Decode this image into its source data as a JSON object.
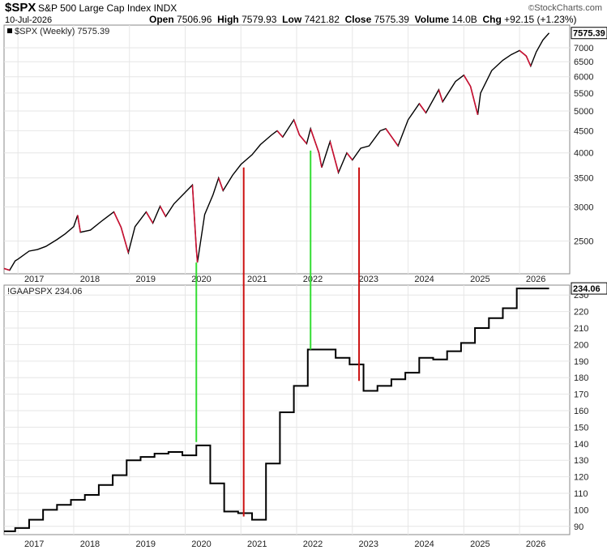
{
  "header": {
    "symbol": "$SPX",
    "name": "S&P 500 Large Cap Index",
    "exchange": "INDX",
    "date": "10-Jul-2026",
    "open_label": "Open",
    "open": "7506.96",
    "high_label": "High",
    "high": "7579.93",
    "low_label": "Low",
    "low": "7421.82",
    "close_label": "Close",
    "close": "7575.39",
    "volume_label": "Volume",
    "volume": "14.0B",
    "chg_label": "Chg",
    "chg": "+92.15 (+1.23%)",
    "brand": "StockCharts.com",
    "brand_symbol": "©"
  },
  "colors": {
    "up_bar": "#000000",
    "down_bar": "#cc1133",
    "green_line": "#33dd33",
    "red_line": "#cc1111",
    "grid": "#e6e6e6",
    "step_line": "#000000"
  },
  "chart_data": [
    {
      "type": "line",
      "legend": "$SPX (Weekly) 7575.39",
      "last_value_tag": "7575.39",
      "y_scale": "log",
      "ylim": [
        2100,
        7900
      ],
      "xlim": [
        2016.75,
        2026.9
      ],
      "y_ticks": [
        2500,
        3000,
        3500,
        4000,
        4500,
        5000,
        5500,
        6000,
        6500,
        7000
      ],
      "x_ticks": [
        "2017",
        "2018",
        "2019",
        "2020",
        "2021",
        "2022",
        "2023",
        "2024",
        "2025",
        "2026"
      ],
      "grid": true,
      "points": [
        [
          2016.75,
          2160
        ],
        [
          2016.85,
          2140
        ],
        [
          2016.95,
          2250
        ],
        [
          2017.0,
          2270
        ],
        [
          2017.2,
          2370
        ],
        [
          2017.35,
          2390
        ],
        [
          2017.5,
          2430
        ],
        [
          2017.7,
          2520
        ],
        [
          2017.85,
          2600
        ],
        [
          2018.0,
          2700
        ],
        [
          2018.07,
          2870
        ],
        [
          2018.12,
          2620
        ],
        [
          2018.3,
          2650
        ],
        [
          2018.5,
          2780
        ],
        [
          2018.72,
          2920
        ],
        [
          2018.85,
          2690
        ],
        [
          2018.98,
          2350
        ],
        [
          2019.1,
          2700
        ],
        [
          2019.3,
          2920
        ],
        [
          2019.42,
          2750
        ],
        [
          2019.55,
          3010
        ],
        [
          2019.65,
          2850
        ],
        [
          2019.8,
          3050
        ],
        [
          2020.0,
          3240
        ],
        [
          2020.13,
          3370
        ],
        [
          2020.2,
          2400
        ],
        [
          2020.22,
          2230
        ],
        [
          2020.35,
          2880
        ],
        [
          2020.5,
          3200
        ],
        [
          2020.6,
          3500
        ],
        [
          2020.68,
          3270
        ],
        [
          2020.85,
          3550
        ],
        [
          2021.0,
          3760
        ],
        [
          2021.2,
          3960
        ],
        [
          2021.35,
          4180
        ],
        [
          2021.55,
          4400
        ],
        [
          2021.65,
          4500
        ],
        [
          2021.75,
          4350
        ],
        [
          2021.95,
          4770
        ],
        [
          2022.05,
          4400
        ],
        [
          2022.18,
          4200
        ],
        [
          2022.25,
          4550
        ],
        [
          2022.4,
          4000
        ],
        [
          2022.45,
          3700
        ],
        [
          2022.6,
          4250
        ],
        [
          2022.75,
          3600
        ],
        [
          2022.9,
          4000
        ],
        [
          2023.0,
          3850
        ],
        [
          2023.15,
          4100
        ],
        [
          2023.3,
          4150
        ],
        [
          2023.5,
          4500
        ],
        [
          2023.6,
          4550
        ],
        [
          2023.82,
          4150
        ],
        [
          2024.0,
          4770
        ],
        [
          2024.2,
          5200
        ],
        [
          2024.32,
          4950
        ],
        [
          2024.55,
          5600
        ],
        [
          2024.62,
          5250
        ],
        [
          2024.85,
          5850
        ],
        [
          2025.0,
          6050
        ],
        [
          2025.12,
          5700
        ],
        [
          2025.25,
          4900
        ],
        [
          2025.3,
          5500
        ],
        [
          2025.5,
          6200
        ],
        [
          2025.7,
          6550
        ],
        [
          2025.85,
          6750
        ],
        [
          2026.0,
          6900
        ],
        [
          2026.12,
          6700
        ],
        [
          2026.2,
          6350
        ],
        [
          2026.3,
          6850
        ],
        [
          2026.42,
          7300
        ],
        [
          2026.53,
          7575
        ]
      ]
    },
    {
      "type": "line",
      "legend": "!GAAPSPX 234.06",
      "last_value_tag": "234.06",
      "step": true,
      "ylim": [
        85,
        236
      ],
      "xlim": [
        2016.75,
        2026.9
      ],
      "y_ticks": [
        90,
        100,
        110,
        120,
        130,
        140,
        150,
        160,
        170,
        180,
        190,
        200,
        210,
        220,
        230
      ],
      "x_ticks": [
        "2017",
        "2018",
        "2019",
        "2020",
        "2021",
        "2022",
        "2023",
        "2024",
        "2025",
        "2026"
      ],
      "grid": true,
      "points": [
        [
          2016.75,
          87
        ],
        [
          2016.95,
          89
        ],
        [
          2017.2,
          94
        ],
        [
          2017.45,
          100
        ],
        [
          2017.7,
          103
        ],
        [
          2017.95,
          106
        ],
        [
          2018.2,
          109
        ],
        [
          2018.45,
          115
        ],
        [
          2018.7,
          121
        ],
        [
          2018.95,
          130
        ],
        [
          2019.2,
          132
        ],
        [
          2019.45,
          134
        ],
        [
          2019.7,
          135
        ],
        [
          2019.95,
          133
        ],
        [
          2020.2,
          139
        ],
        [
          2020.45,
          116
        ],
        [
          2020.7,
          99
        ],
        [
          2020.95,
          98
        ],
        [
          2021.2,
          94
        ],
        [
          2021.45,
          128
        ],
        [
          2021.7,
          159
        ],
        [
          2021.95,
          175
        ],
        [
          2022.2,
          197
        ],
        [
          2022.45,
          197
        ],
        [
          2022.7,
          192
        ],
        [
          2022.95,
          188
        ],
        [
          2023.2,
          172
        ],
        [
          2023.45,
          175
        ],
        [
          2023.7,
          179
        ],
        [
          2023.95,
          183
        ],
        [
          2024.2,
          192
        ],
        [
          2024.45,
          191
        ],
        [
          2024.7,
          196
        ],
        [
          2024.95,
          201
        ],
        [
          2025.2,
          210
        ],
        [
          2025.45,
          216
        ],
        [
          2025.7,
          222
        ],
        [
          2025.95,
          234
        ],
        [
          2026.53,
          234
        ]
      ]
    }
  ],
  "annotations": [
    {
      "color": "green",
      "x": 2020.2,
      "spx": 2230,
      "eps": 141
    },
    {
      "color": "red",
      "x": 2021.05,
      "spx": 3700,
      "eps": 96
    },
    {
      "color": "green",
      "x": 2022.25,
      "spx": 4050,
      "eps": 197
    },
    {
      "color": "red",
      "x": 2023.12,
      "spx": 3700,
      "eps": 178
    }
  ]
}
